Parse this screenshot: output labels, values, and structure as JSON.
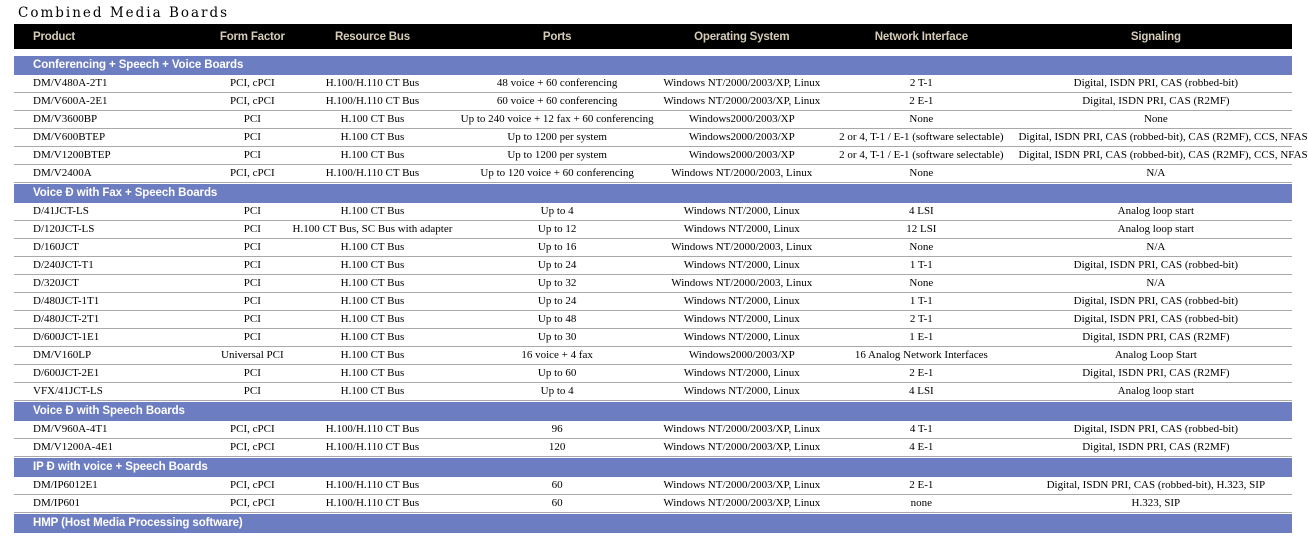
{
  "page_title": "Combined Media Boards",
  "colors": {
    "header_bg": "#000000",
    "header_text": "#d5ccb8",
    "section_band_bg": "#6d7dc1",
    "section_band_text": "#ffffff",
    "row_separator": "#a9a9a9",
    "row_text": "#000000"
  },
  "table": {
    "columns": [
      "Product",
      "Form Factor",
      "Resource Bus",
      "Ports",
      "Operating System",
      "Network Interface",
      "Signaling"
    ],
    "sections": [
      {
        "label": "Conferencing + Speech + Voice Boards",
        "rows": [
          {
            "product": "DM/V480A-2T1",
            "form_factor": "PCI, cPCI",
            "resource_bus": "H.100/H.110 CT Bus",
            "ports": "48 voice + 60 conferencing",
            "operating_system": "Windows NT/2000/2003/XP, Linux",
            "network_interface": "2 T-1",
            "signaling": "Digital, ISDN PRI, CAS (robbed-bit)"
          },
          {
            "product": "DM/V600A-2E1",
            "form_factor": "PCI, cPCI",
            "resource_bus": "H.100/H.110 CT Bus",
            "ports": "60 voice + 60 conferencing",
            "operating_system": "Windows NT/2000/2003/XP, Linux",
            "network_interface": "2 E-1",
            "signaling": "Digital, ISDN PRI, CAS (R2MF)"
          },
          {
            "product": "DM/V3600BP",
            "form_factor": "PCI",
            "resource_bus": "H.100 CT Bus",
            "ports": "Up to 240 voice + 12 fax + 60 conferencing",
            "operating_system": "Windows2000/2003/XP",
            "network_interface": "None",
            "signaling": "None"
          },
          {
            "product": "DM/V600BTEP",
            "form_factor": "PCI",
            "resource_bus": "H.100 CT Bus",
            "ports": "Up to 1200 per system",
            "operating_system": "Windows2000/2003/XP",
            "network_interface": "2 or 4, T-1 / E-1 (software selectable)",
            "signaling": "Digital, ISDN PRI, CAS (robbed-bit), CAS (R2MF), CCS, NFAS"
          },
          {
            "product": "DM/V1200BTEP",
            "form_factor": "PCI",
            "resource_bus": "H.100 CT Bus",
            "ports": "Up to 1200 per system",
            "operating_system": "Windows2000/2003/XP",
            "network_interface": "2 or 4, T-1 / E-1 (software selectable)",
            "signaling": "Digital, ISDN PRI, CAS (robbed-bit), CAS (R2MF), CCS, NFAS"
          },
          {
            "product": "DM/V2400A",
            "form_factor": "PCI, cPCI",
            "resource_bus": "H.100/H.110 CT Bus",
            "ports": "Up to 120 voice + 60 conferencing",
            "operating_system": "Windows NT/2000/2003, Linux",
            "network_interface": "None",
            "signaling": "N/A"
          }
        ]
      },
      {
        "label": "Voice Ð with Fax + Speech Boards",
        "rows": [
          {
            "product": "D/41JCT-LS",
            "form_factor": "PCI",
            "resource_bus": "H.100 CT Bus",
            "ports": "Up to 4",
            "operating_system": "Windows NT/2000, Linux",
            "network_interface": "4 LSI",
            "signaling": "Analog loop start"
          },
          {
            "product": "D/120JCT-LS",
            "form_factor": "PCI",
            "resource_bus": "H.100 CT Bus, SC Bus with adapter",
            "ports": "Up to 12",
            "operating_system": "Windows NT/2000, Linux",
            "network_interface": "12 LSI",
            "signaling": "Analog loop start"
          },
          {
            "product": "D/160JCT",
            "form_factor": "PCI",
            "resource_bus": "H.100 CT Bus",
            "ports": "Up to 16",
            "operating_system": "Windows NT/2000/2003, Linux",
            "network_interface": "None",
            "signaling": "N/A"
          },
          {
            "product": "D/240JCT-T1",
            "form_factor": "PCI",
            "resource_bus": "H.100 CT Bus",
            "ports": "Up to 24",
            "operating_system": "Windows NT/2000, Linux",
            "network_interface": "1 T-1",
            "signaling": "Digital, ISDN PRI, CAS (robbed-bit)"
          },
          {
            "product": "D/320JCT",
            "form_factor": "PCI",
            "resource_bus": "H.100 CT Bus",
            "ports": "Up to 32",
            "operating_system": "Windows NT/2000/2003, Linux",
            "network_interface": "None",
            "signaling": "N/A"
          },
          {
            "product": "D/480JCT-1T1",
            "form_factor": "PCI",
            "resource_bus": "H.100 CT Bus",
            "ports": "Up to 24",
            "operating_system": "Windows NT/2000, Linux",
            "network_interface": "1 T-1",
            "signaling": "Digital, ISDN PRI, CAS (robbed-bit)"
          },
          {
            "product": "D/480JCT-2T1",
            "form_factor": "PCI",
            "resource_bus": "H.100 CT Bus",
            "ports": "Up to 48",
            "operating_system": "Windows NT/2000, Linux",
            "network_interface": "2 T-1",
            "signaling": "Digital, ISDN PRI, CAS (robbed-bit)"
          },
          {
            "product": "D/600JCT-1E1",
            "form_factor": "PCI",
            "resource_bus": "H.100 CT Bus",
            "ports": "Up to 30",
            "operating_system": "Windows NT/2000, Linux",
            "network_interface": "1 E-1",
            "signaling": "Digital, ISDN PRI, CAS (R2MF)"
          },
          {
            "product": "DM/V160LP",
            "form_factor": "Universal PCI",
            "resource_bus": "H.100 CT Bus",
            "ports": "16 voice + 4 fax",
            "operating_system": "Windows2000/2003/XP",
            "network_interface": "16 Analog Network Interfaces",
            "signaling": "Analog Loop Start"
          },
          {
            "product": "D/600JCT-2E1",
            "form_factor": "PCI",
            "resource_bus": "H.100 CT Bus",
            "ports": "Up to 60",
            "operating_system": "Windows NT/2000, Linux",
            "network_interface": "2 E-1",
            "signaling": "Digital, ISDN PRI, CAS (R2MF)"
          },
          {
            "product": "VFX/41JCT-LS",
            "form_factor": "PCI",
            "resource_bus": "H.100 CT Bus",
            "ports": "Up to 4",
            "operating_system": "Windows NT/2000, Linux",
            "network_interface": "4 LSI",
            "signaling": "Analog loop start"
          }
        ]
      },
      {
        "label": "Voice Ð with Speech Boards",
        "rows": [
          {
            "product": "DM/V960A-4T1",
            "form_factor": "PCI, cPCI",
            "resource_bus": "H.100/H.110 CT Bus",
            "ports": "96",
            "operating_system": "Windows NT/2000/2003/XP, Linux",
            "network_interface": "4 T-1",
            "signaling": "Digital, ISDN PRI, CAS (robbed-bit)"
          },
          {
            "product": "DM/V1200A-4E1",
            "form_factor": "PCI, cPCI",
            "resource_bus": "H.100/H.110 CT Bus",
            "ports": "120",
            "operating_system": "Windows NT/2000/2003/XP, Linux",
            "network_interface": "4 E-1",
            "signaling": "Digital, ISDN PRI, CAS (R2MF)"
          }
        ]
      },
      {
        "label": "IP Ð with voice + Speech Boards",
        "rows": [
          {
            "product": "DM/IP6012E1",
            "form_factor": "PCI, cPCI",
            "resource_bus": "H.100/H.110 CT Bus",
            "ports": "60",
            "operating_system": "Windows NT/2000/2003/XP, Linux",
            "network_interface": "2 E-1",
            "signaling": "Digital, ISDN PRI, CAS (robbed-bit), H.323, SIP"
          },
          {
            "product": "DM/IP601",
            "form_factor": "PCI, cPCI",
            "resource_bus": "H.100/H.110 CT Bus",
            "ports": "60",
            "operating_system": "Windows NT/2000/2003/XP, Linux",
            "network_interface": "none",
            "signaling": "H.323, SIP"
          }
        ]
      },
      {
        "label": "HMP (Host Media Processing software)",
        "rows": []
      }
    ]
  }
}
